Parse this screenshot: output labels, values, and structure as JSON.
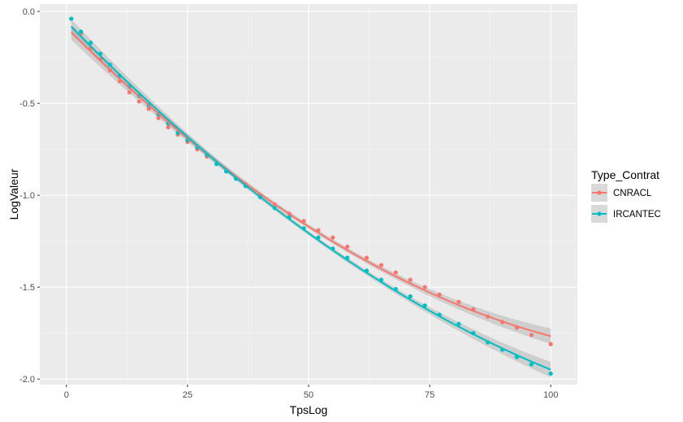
{
  "chart_data": {
    "type": "scatter",
    "xlabel": "TpsLog",
    "ylabel": "LogValeur",
    "xlim": [
      -5.5,
      105.5
    ],
    "ylim": [
      -2.03,
      0.04
    ],
    "x_ticks": [
      0,
      25,
      50,
      75,
      100
    ],
    "x_tick_labels": [
      "0",
      "25",
      "50",
      "75",
      "100"
    ],
    "y_ticks": [
      0,
      -0.5,
      -1,
      -1.5,
      -2
    ],
    "y_tick_labels": [
      "0.0",
      "-0.5",
      "-1.0",
      "-1.5",
      "-2.0"
    ],
    "grid": true,
    "background": "#ebebeb",
    "legend": {
      "title": "Type_Contrat",
      "position": "right"
    },
    "smooth": true,
    "series": [
      {
        "name": "CNRACL",
        "color": "#f8766d",
        "x": [
          1,
          3,
          5,
          7,
          9,
          11,
          13,
          15,
          17,
          19,
          21,
          23,
          25,
          27,
          29,
          31,
          33,
          35,
          37,
          40,
          43,
          46,
          49,
          52,
          55,
          58,
          62,
          65,
          68,
          71,
          74,
          77,
          81,
          84,
          87,
          90,
          93,
          96,
          100
        ],
        "y": [
          -0.04,
          -0.12,
          -0.2,
          -0.26,
          -0.32,
          -0.38,
          -0.44,
          -0.49,
          -0.53,
          -0.58,
          -0.63,
          -0.67,
          -0.71,
          -0.75,
          -0.79,
          -0.83,
          -0.87,
          -0.91,
          -0.94,
          -1.0,
          -1.05,
          -1.1,
          -1.14,
          -1.19,
          -1.23,
          -1.28,
          -1.34,
          -1.38,
          -1.42,
          -1.46,
          -1.5,
          -1.54,
          -1.58,
          -1.62,
          -1.66,
          -1.69,
          -1.72,
          -1.76,
          -1.81
        ],
        "fit": [
          {
            "x": 0,
            "y": -0.105
          },
          {
            "x": 10,
            "y": -0.335
          },
          {
            "x": 20,
            "y": -0.545
          },
          {
            "x": 30,
            "y": -0.74
          },
          {
            "x": 40,
            "y": -0.915
          },
          {
            "x": 50,
            "y": -1.08
          },
          {
            "x": 60,
            "y": -1.23
          },
          {
            "x": 70,
            "y": -1.365
          },
          {
            "x": 80,
            "y": -1.49
          },
          {
            "x": 90,
            "y": -1.6
          },
          {
            "x": 100,
            "y": -1.7
          }
        ]
      },
      {
        "name": "IRCANTEC",
        "color": "#00bfc4",
        "x": [
          1,
          3,
          5,
          7,
          9,
          11,
          13,
          15,
          17,
          19,
          21,
          23,
          25,
          27,
          29,
          31,
          33,
          35,
          37,
          40,
          43,
          46,
          49,
          52,
          55,
          58,
          62,
          65,
          68,
          71,
          74,
          77,
          81,
          84,
          87,
          90,
          93,
          96,
          100
        ],
        "y": [
          -0.04,
          -0.11,
          -0.17,
          -0.23,
          -0.29,
          -0.35,
          -0.41,
          -0.46,
          -0.51,
          -0.56,
          -0.61,
          -0.66,
          -0.7,
          -0.74,
          -0.78,
          -0.83,
          -0.87,
          -0.91,
          -0.95,
          -1.01,
          -1.07,
          -1.12,
          -1.18,
          -1.23,
          -1.29,
          -1.34,
          -1.41,
          -1.46,
          -1.51,
          -1.55,
          -1.6,
          -1.65,
          -1.7,
          -1.75,
          -1.8,
          -1.84,
          -1.88,
          -1.92,
          -1.97
        ]
      }
    ]
  }
}
